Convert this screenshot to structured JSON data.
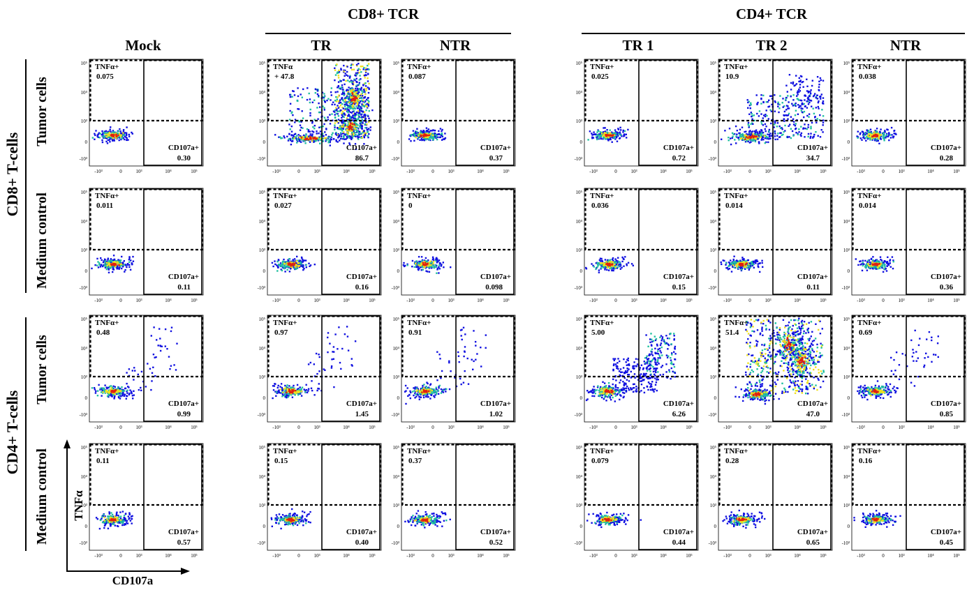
{
  "headers": {
    "groups": [
      "CD8+ TCR",
      "CD4+ TCR"
    ],
    "columns": [
      "Mock",
      "TR",
      "NTR",
      "TR 1",
      "TR 2",
      "NTR"
    ],
    "row_groups": [
      "CD8+ T-cells",
      "CD4+ T-cells"
    ],
    "rows": [
      "Tumor cells",
      "Medium control",
      "Tumor cells",
      "Medium control"
    ]
  },
  "axes": {
    "x_label": "CD107a",
    "y_label": "TNFα"
  },
  "tick_labels": {
    "x": [
      "-10³",
      "0",
      "10³",
      "10⁴",
      "10⁵"
    ],
    "y": [
      "10⁵",
      "10⁴",
      "10³",
      "0",
      "-10³"
    ]
  },
  "chart_data": {
    "type": "scatter",
    "title": "",
    "xlabel": "CD107a",
    "ylabel": "TNFα",
    "scale": "biexponential",
    "gate_label_tnf": "TNFα+",
    "gate_label_cd107a": "CD107a+",
    "panels": [
      {
        "row": "CD8+ T-cells / Tumor cells",
        "column": "Mock",
        "tnf": "0.075",
        "cd107a": "0.30",
        "tnf_label": "TNFα+",
        "cd107a_label": "CD107a+",
        "pattern": "tight"
      },
      {
        "row": "CD8+ T-cells / Tumor cells",
        "column": "CD8+ TCR TR",
        "tnf": "+ 47.8",
        "cd107a": "86.7",
        "tnf_label": "TNFα",
        "cd107a_label": "CD107a+",
        "pattern": "massive"
      },
      {
        "row": "CD8+ T-cells / Tumor cells",
        "column": "CD8+ TCR NTR",
        "tnf": "0.087",
        "cd107a": "0.37",
        "tnf_label": "TNFα+",
        "cd107a_label": "CD107a+",
        "pattern": "tight"
      },
      {
        "row": "CD8+ T-cells / Tumor cells",
        "column": "CD4+ TCR TR 1",
        "tnf": "0.025",
        "cd107a": "0.72",
        "tnf_label": "TNFα+",
        "cd107a_label": "CD107a+",
        "pattern": "tight"
      },
      {
        "row": "CD8+ T-cells / Tumor cells",
        "column": "CD4+ TCR TR 2",
        "tnf": "10.9",
        "cd107a": "34.7",
        "tnf_label": "TNFα+",
        "cd107a_label": "CD107a+",
        "pattern": "strong"
      },
      {
        "row": "CD8+ T-cells / Tumor cells",
        "column": "CD4+ TCR NTR",
        "tnf": "0.038",
        "cd107a": "0.28",
        "tnf_label": "TNFα+",
        "cd107a_label": "CD107a+",
        "pattern": "tight"
      },
      {
        "row": "CD8+ T-cells / Medium control",
        "column": "Mock",
        "tnf": "0.011",
        "cd107a": "0.11",
        "tnf_label": "TNFα+",
        "cd107a_label": "CD107a+",
        "pattern": "tight"
      },
      {
        "row": "CD8+ T-cells / Medium control",
        "column": "CD8+ TCR TR",
        "tnf": "0.027",
        "cd107a": "0.16",
        "tnf_label": "TNFα+",
        "cd107a_label": "CD107a+",
        "pattern": "tight"
      },
      {
        "row": "CD8+ T-cells / Medium control",
        "column": "CD8+ TCR NTR",
        "tnf": "0",
        "cd107a": "0.098",
        "tnf_label": "TNFα+",
        "cd107a_label": "CD107a+",
        "pattern": "tight"
      },
      {
        "row": "CD8+ T-cells / Medium control",
        "column": "CD4+ TCR TR 1",
        "tnf": "0.036",
        "cd107a": "0.15",
        "tnf_label": "TNFα+",
        "cd107a_label": "CD107a+",
        "pattern": "tight"
      },
      {
        "row": "CD8+ T-cells / Medium control",
        "column": "CD4+ TCR TR 2",
        "tnf": "0.014",
        "cd107a": "0.11",
        "tnf_label": "TNFα+",
        "cd107a_label": "CD107a+",
        "pattern": "tight"
      },
      {
        "row": "CD8+ T-cells / Medium control",
        "column": "CD4+ TCR NTR",
        "tnf": "0.014",
        "cd107a": "0.36",
        "tnf_label": "TNFα+",
        "cd107a_label": "CD107a+",
        "pattern": "tight"
      },
      {
        "row": "CD4+ T-cells / Tumor cells",
        "column": "Mock",
        "tnf": "0.48",
        "cd107a": "0.99",
        "tnf_label": "TNFα+",
        "cd107a_label": "CD107a+",
        "pattern": "low"
      },
      {
        "row": "CD4+ T-cells / Tumor cells",
        "column": "CD8+ TCR TR",
        "tnf": "0.97",
        "cd107a": "1.45",
        "tnf_label": "TNFα+",
        "cd107a_label": "CD107a+",
        "pattern": "low"
      },
      {
        "row": "CD4+ T-cells / Tumor cells",
        "column": "CD8+ TCR NTR",
        "tnf": "0.91",
        "cd107a": "1.02",
        "tnf_label": "TNFα+",
        "cd107a_label": "CD107a+",
        "pattern": "low"
      },
      {
        "row": "CD4+ T-cells / Tumor cells",
        "column": "CD4+ TCR TR 1",
        "tnf": "5.00",
        "cd107a": "6.26",
        "tnf_label": "TNFα+",
        "cd107a_label": "CD107a+",
        "pattern": "medium"
      },
      {
        "row": "CD4+ T-cells / Tumor cells",
        "column": "CD4+ TCR TR 2",
        "tnf": "51.4",
        "cd107a": "47.0",
        "tnf_label": "TNFα+",
        "cd107a_label": "CD107a+",
        "pattern": "massive2"
      },
      {
        "row": "CD4+ T-cells / Tumor cells",
        "column": "CD4+ TCR NTR",
        "tnf": "0.69",
        "cd107a": "0.85",
        "tnf_label": "TNFα+",
        "cd107a_label": "CD107a+",
        "pattern": "low"
      },
      {
        "row": "CD4+ T-cells / Medium control",
        "column": "Mock",
        "tnf": "0.11",
        "cd107a": "0.57",
        "tnf_label": "TNFα+",
        "cd107a_label": "CD107a+",
        "pattern": "tight"
      },
      {
        "row": "CD4+ T-cells / Medium control",
        "column": "CD8+ TCR TR",
        "tnf": "0.15",
        "cd107a": "0.40",
        "tnf_label": "TNFα+",
        "cd107a_label": "CD107a+",
        "pattern": "tight"
      },
      {
        "row": "CD4+ T-cells / Medium control",
        "column": "CD8+ TCR NTR",
        "tnf": "0.37",
        "cd107a": "0.52",
        "tnf_label": "TNFα+",
        "cd107a_label": "CD107a+",
        "pattern": "tight"
      },
      {
        "row": "CD4+ T-cells / Medium control",
        "column": "CD4+ TCR TR 1",
        "tnf": "0.079",
        "cd107a": "0.44",
        "tnf_label": "TNFα+",
        "cd107a_label": "CD107a+",
        "pattern": "tight"
      },
      {
        "row": "CD4+ T-cells / Medium control",
        "column": "CD4+ TCR TR 2",
        "tnf": "0.28",
        "cd107a": "0.65",
        "tnf_label": "TNFα+",
        "cd107a_label": "CD107a+",
        "pattern": "tight"
      },
      {
        "row": "CD4+ T-cells / Medium control",
        "column": "CD4+ TCR NTR",
        "tnf": "0.16",
        "cd107a": "0.45",
        "tnf_label": "TNFα+",
        "cd107a_label": "CD107a+",
        "pattern": "tight"
      }
    ]
  },
  "colors": {
    "density_low": "#1010e0",
    "density_mid": "#20c0a0",
    "density_high": "#f0e020",
    "density_peak": "#e02010"
  }
}
